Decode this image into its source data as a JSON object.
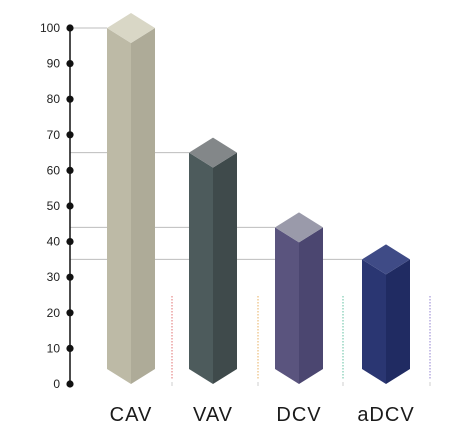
{
  "chart_data": {
    "type": "bar",
    "categories": [
      "CAV",
      "VAV",
      "DCV",
      "aDCV"
    ],
    "values": [
      100,
      65,
      44,
      35
    ],
    "ylim": [
      0,
      100
    ],
    "yticks": [
      0,
      10,
      20,
      30,
      40,
      50,
      60,
      70,
      80,
      90,
      100
    ],
    "colors": [
      "#bdbaa6",
      "#4d5b5c",
      "#5a547e",
      "#2a3672"
    ],
    "top_colors": [
      "#d9d7c6",
      "#838789",
      "#9a9aaa",
      "#3f4b86"
    ],
    "side_colors": [
      "#aeab98",
      "#3f4a4b",
      "#4b4670",
      "#202b62"
    ],
    "divider_colors": [
      "#e07070",
      "#e8b060",
      "#60c0a0",
      "#9080d0"
    ],
    "title": "",
    "xlabel": "",
    "ylabel": ""
  }
}
